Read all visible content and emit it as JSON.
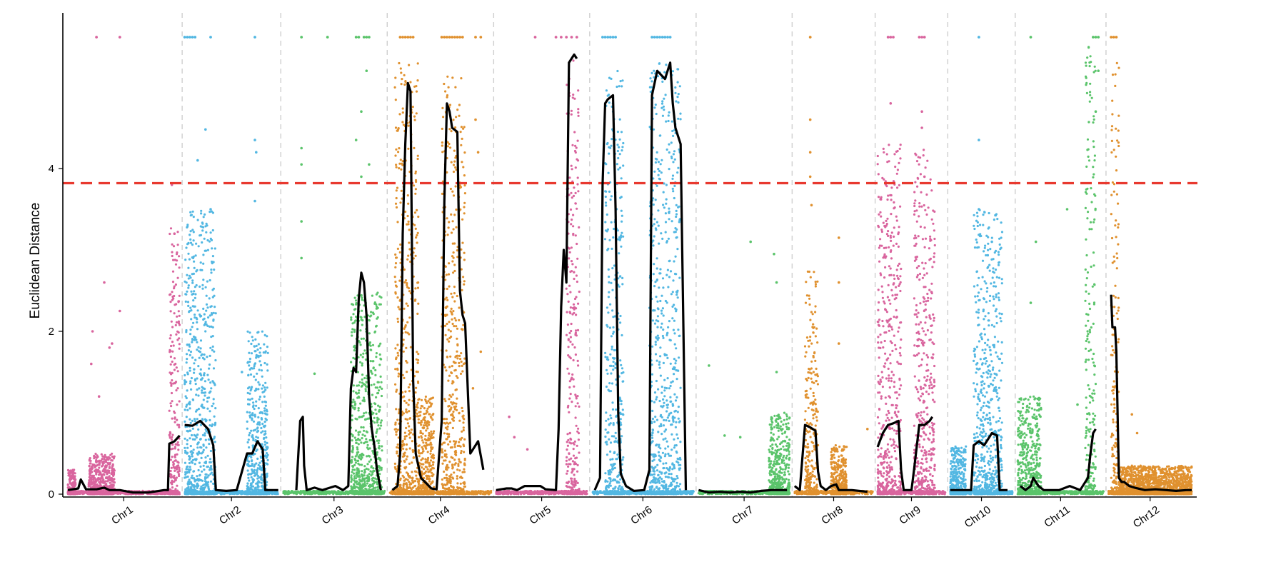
{
  "chart_data": {
    "type": "scatter",
    "title": "",
    "xlabel": "",
    "ylabel": "Euclidean Distance",
    "ylim": [
      -0.25,
      5.95
    ],
    "yticks": [
      0,
      2,
      4
    ],
    "threshold": 3.82,
    "threshold_color": "#e8392f",
    "grid": false,
    "chromosomes": [
      {
        "name": "Chr1",
        "color": "#d9659e",
        "length": 43,
        "dense": [
          [
            0,
            3,
            0.3
          ],
          [
            8,
            18,
            0.5
          ],
          [
            39,
            43,
            3.3
          ]
        ],
        "line": [
          [
            0,
            0.05
          ],
          [
            4,
            0.07
          ],
          [
            5,
            0.18
          ],
          [
            7,
            0.06
          ],
          [
            11,
            0.06
          ],
          [
            14,
            0.08
          ],
          [
            16,
            0.05
          ],
          [
            20,
            0.05
          ],
          [
            25,
            0.02
          ],
          [
            31,
            0.02
          ],
          [
            37,
            0.05
          ],
          [
            38.5,
            0.05
          ],
          [
            39,
            0.62
          ],
          [
            41,
            0.65
          ],
          [
            43,
            0.72
          ]
        ],
        "top": [
          11,
          20
        ],
        "sparse": [
          [
            9,
            1.6
          ],
          [
            9.5,
            2.0
          ],
          [
            14,
            2.6
          ],
          [
            16,
            1.8
          ],
          [
            17,
            1.85
          ],
          [
            20,
            2.25
          ],
          [
            12,
            1.2
          ],
          [
            41,
            3.2
          ],
          [
            40,
            3.8
          ]
        ]
      },
      {
        "name": "Chr2",
        "color": "#52b7e2",
        "length": 36,
        "dense": [
          [
            0,
            12,
            3.5
          ],
          [
            24,
            32,
            2.0
          ]
        ],
        "line": [
          [
            0,
            0.85
          ],
          [
            3,
            0.84
          ],
          [
            6,
            0.9
          ],
          [
            9,
            0.8
          ],
          [
            11,
            0.6
          ],
          [
            12,
            0.05
          ],
          [
            16,
            0.04
          ],
          [
            20,
            0.05
          ],
          [
            24,
            0.5
          ],
          [
            26,
            0.5
          ],
          [
            28,
            0.65
          ],
          [
            30,
            0.55
          ],
          [
            31,
            0.05
          ],
          [
            34,
            0.05
          ],
          [
            36,
            0.05
          ]
        ],
        "top": [
          0,
          1,
          2,
          3,
          4,
          10,
          27
        ],
        "sparse": [
          [
            5,
            4.1
          ],
          [
            8,
            4.48
          ],
          [
            10,
            3.5
          ],
          [
            27,
            4.35
          ],
          [
            27.5,
            4.2
          ],
          [
            27,
            3.6
          ],
          [
            22,
            1.5
          ]
        ]
      },
      {
        "name": "Chr3",
        "color": "#5bc46b",
        "length": 39,
        "dense": [
          [
            26,
            38,
            2.5
          ]
        ],
        "line": [
          [
            5,
            0.05
          ],
          [
            6.5,
            0.9
          ],
          [
            7.5,
            0.95
          ],
          [
            8,
            0.35
          ],
          [
            9,
            0.05
          ],
          [
            12,
            0.08
          ],
          [
            15,
            0.05
          ],
          [
            17,
            0.07
          ],
          [
            20,
            0.1
          ],
          [
            23,
            0.05
          ],
          [
            25,
            0.1
          ],
          [
            26,
            1.3
          ],
          [
            27,
            1.55
          ],
          [
            28,
            1.5
          ],
          [
            29,
            2.4
          ],
          [
            30,
            2.72
          ],
          [
            31,
            2.6
          ],
          [
            32,
            2.2
          ],
          [
            33,
            1.2
          ],
          [
            34,
            0.8
          ],
          [
            35,
            0.6
          ],
          [
            36,
            0.3
          ],
          [
            37.5,
            0.05
          ]
        ],
        "top": [
          7,
          17,
          28,
          29,
          31,
          32,
          33
        ],
        "sparse": [
          [
            7,
            4.25
          ],
          [
            7,
            4.05
          ],
          [
            7,
            3.35
          ],
          [
            7,
            2.9
          ],
          [
            12,
            1.48
          ],
          [
            28,
            4.35
          ],
          [
            30,
            4.7
          ],
          [
            32,
            5.2
          ],
          [
            33,
            4.05
          ],
          [
            30,
            3.9
          ]
        ]
      },
      {
        "name": "Chr4",
        "color": "#e0912f",
        "length": 39,
        "dense": [
          [
            2,
            11,
            5.3
          ],
          [
            11,
            17,
            1.2
          ],
          [
            20,
            29,
            5.2
          ]
        ],
        "line": [
          [
            1,
            0.05
          ],
          [
            3,
            0.1
          ],
          [
            4,
            0.5
          ],
          [
            5,
            3.2
          ],
          [
            6,
            4.3
          ],
          [
            7,
            5.05
          ],
          [
            8,
            4.95
          ],
          [
            9,
            1.4
          ],
          [
            10,
            0.5
          ],
          [
            12,
            0.2
          ],
          [
            16,
            0.07
          ],
          [
            18,
            0.06
          ],
          [
            20,
            0.9
          ],
          [
            21,
            3.6
          ],
          [
            22,
            4.8
          ],
          [
            23,
            4.7
          ],
          [
            24,
            4.5
          ],
          [
            26,
            4.45
          ],
          [
            27,
            2.5
          ],
          [
            28,
            2.2
          ],
          [
            29,
            2.1
          ],
          [
            31,
            0.5
          ],
          [
            32,
            0.55
          ],
          [
            34,
            0.65
          ],
          [
            36,
            0.3
          ]
        ],
        "top": [
          4,
          5,
          6,
          7,
          8,
          9,
          20,
          21,
          22,
          23,
          24,
          25,
          26,
          27,
          28,
          33,
          35
        ],
        "sparse": [
          [
            33,
            4.6
          ],
          [
            34,
            4.2
          ],
          [
            35,
            1.75
          ],
          [
            32,
            1.3
          ]
        ]
      },
      {
        "name": "Chr5",
        "color": "#d9659e",
        "length": 35,
        "dense": [
          [
            27,
            32,
            5.4
          ]
        ],
        "line": [
          [
            0,
            0.05
          ],
          [
            4,
            0.07
          ],
          [
            6,
            0.07
          ],
          [
            8,
            0.05
          ],
          [
            11,
            0.1
          ],
          [
            14,
            0.1
          ],
          [
            17,
            0.1
          ],
          [
            19,
            0.06
          ],
          [
            23,
            0.05
          ],
          [
            24,
            0.8
          ],
          [
            25,
            2.3
          ],
          [
            26,
            3.0
          ],
          [
            27,
            2.6
          ],
          [
            28,
            5.3
          ],
          [
            30,
            5.4
          ],
          [
            31,
            5.35
          ]
        ],
        "top": [
          15,
          23,
          25,
          27,
          29,
          31
        ],
        "sparse": [
          [
            5,
            0.95
          ],
          [
            7,
            0.7
          ],
          [
            12,
            0.55
          ]
        ]
      },
      {
        "name": "Chr6",
        "color": "#52b7e2",
        "length": 39,
        "dense": [
          [
            5,
            12,
            5.2
          ],
          [
            22,
            34,
            5.3
          ]
        ],
        "line": [
          [
            1,
            0.05
          ],
          [
            3,
            0.2
          ],
          [
            4,
            3.8
          ],
          [
            5,
            4.8
          ],
          [
            6,
            4.85
          ],
          [
            8,
            4.9
          ],
          [
            9,
            3.5
          ],
          [
            10,
            1.0
          ],
          [
            11,
            0.25
          ],
          [
            13,
            0.1
          ],
          [
            16,
            0.04
          ],
          [
            20,
            0.05
          ],
          [
            22,
            0.3
          ],
          [
            23,
            4.9
          ],
          [
            25,
            5.2
          ],
          [
            28,
            5.1
          ],
          [
            30,
            5.3
          ],
          [
            31,
            4.8
          ],
          [
            32,
            4.5
          ],
          [
            33,
            4.4
          ],
          [
            34,
            4.3
          ],
          [
            36,
            0.05
          ]
        ],
        "top": [
          4,
          5,
          6,
          7,
          8,
          9,
          23,
          24,
          25,
          26,
          27,
          28,
          29,
          30
        ],
        "sparse": []
      },
      {
        "name": "Chr7",
        "color": "#5bc46b",
        "length": 35,
        "dense": [
          [
            27,
            35,
            1.0
          ]
        ],
        "line": [
          [
            0,
            0.05
          ],
          [
            4,
            0.02
          ],
          [
            8,
            0.03
          ],
          [
            12,
            0.02
          ],
          [
            16,
            0.03
          ],
          [
            20,
            0.02
          ],
          [
            24,
            0.04
          ],
          [
            28,
            0.05
          ],
          [
            34,
            0.05
          ]
        ],
        "top": [],
        "sparse": [
          [
            4,
            1.58
          ],
          [
            20,
            3.1
          ],
          [
            29,
            2.95
          ],
          [
            30,
            2.6
          ],
          [
            30,
            1.5
          ],
          [
            10,
            0.72
          ],
          [
            16,
            0.7
          ]
        ]
      },
      {
        "name": "Chr8",
        "color": "#e0912f",
        "length": 30,
        "dense": [
          [
            4,
            9,
            2.8
          ],
          [
            14,
            20,
            0.6
          ]
        ],
        "line": [
          [
            0,
            0.1
          ],
          [
            2,
            0.05
          ],
          [
            4,
            0.85
          ],
          [
            6,
            0.82
          ],
          [
            8,
            0.78
          ],
          [
            9,
            0.28
          ],
          [
            10,
            0.1
          ],
          [
            12,
            0.05
          ],
          [
            14,
            0.1
          ],
          [
            16,
            0.12
          ],
          [
            17,
            0.05
          ],
          [
            22,
            0.05
          ],
          [
            28,
            0.03
          ]
        ],
        "top": [
          6
        ],
        "sparse": [
          [
            6,
            4.6
          ],
          [
            6,
            4.2
          ],
          [
            6,
            3.9
          ],
          [
            6.5,
            3.55
          ],
          [
            17,
            3.15
          ],
          [
            17,
            2.6
          ],
          [
            17,
            1.85
          ],
          [
            28,
            0.8
          ]
        ]
      },
      {
        "name": "Chr9",
        "color": "#d9659e",
        "length": 26,
        "dense": [
          [
            0,
            9,
            4.3
          ],
          [
            14,
            22,
            4.3
          ]
        ],
        "line": [
          [
            0,
            0.58
          ],
          [
            2,
            0.75
          ],
          [
            4,
            0.85
          ],
          [
            6,
            0.87
          ],
          [
            8,
            0.9
          ],
          [
            9,
            0.3
          ],
          [
            10,
            0.05
          ],
          [
            13,
            0.05
          ],
          [
            14,
            0.3
          ],
          [
            16,
            0.85
          ],
          [
            18,
            0.85
          ],
          [
            20,
            0.9
          ],
          [
            21,
            0.95
          ]
        ],
        "top": [
          4,
          5,
          6,
          16,
          17,
          18
        ],
        "sparse": [
          [
            5,
            4.8
          ],
          [
            17,
            4.7
          ],
          [
            17,
            4.5
          ],
          [
            18,
            3.9
          ]
        ]
      },
      {
        "name": "Chr10",
        "color": "#52b7e2",
        "length": 24,
        "dense": [
          [
            0,
            6,
            0.6
          ],
          [
            9,
            20,
            3.5
          ]
        ],
        "line": [
          [
            0,
            0.05
          ],
          [
            5,
            0.05
          ],
          [
            8,
            0.05
          ],
          [
            9,
            0.6
          ],
          [
            11,
            0.65
          ],
          [
            13,
            0.6
          ],
          [
            15,
            0.7
          ],
          [
            16,
            0.75
          ],
          [
            18,
            0.72
          ],
          [
            19,
            0.05
          ],
          [
            22,
            0.05
          ]
        ],
        "top": [
          11
        ],
        "sparse": [
          [
            11,
            4.35
          ],
          [
            11,
            3.5
          ],
          [
            16,
            3.1
          ]
        ]
      },
      {
        "name": "Chr11",
        "color": "#5bc46b",
        "length": 33,
        "dense": [
          [
            0,
            9,
            1.2
          ],
          [
            26,
            30,
            5.5
          ]
        ],
        "line": [
          [
            1,
            0.1
          ],
          [
            3,
            0.05
          ],
          [
            5,
            0.1
          ],
          [
            6,
            0.2
          ],
          [
            8,
            0.1
          ],
          [
            10,
            0.05
          ],
          [
            16,
            0.05
          ],
          [
            20,
            0.1
          ],
          [
            24,
            0.05
          ],
          [
            27,
            0.2
          ],
          [
            28,
            0.5
          ],
          [
            29,
            0.75
          ],
          [
            30,
            0.8
          ]
        ],
        "top": [
          5,
          29,
          30,
          31
        ],
        "sparse": [
          [
            5,
            2.35
          ],
          [
            7,
            3.1
          ],
          [
            19,
            3.5
          ],
          [
            23,
            1.1
          ],
          [
            30,
            4.7
          ],
          [
            31,
            5.2
          ]
        ]
      },
      {
        "name": "Chr12",
        "color": "#e0912f",
        "length": 32,
        "dense": [
          [
            1,
            4,
            5.3
          ],
          [
            4,
            32,
            0.35
          ]
        ],
        "line": [
          [
            1,
            2.45
          ],
          [
            1.5,
            2.05
          ],
          [
            2.5,
            2.05
          ],
          [
            3,
            1.75
          ],
          [
            4,
            0.2
          ],
          [
            5,
            0.15
          ],
          [
            6,
            0.15
          ],
          [
            8,
            0.1
          ],
          [
            10,
            0.08
          ],
          [
            14,
            0.05
          ],
          [
            18,
            0.06
          ],
          [
            22,
            0.05
          ],
          [
            26,
            0.04
          ],
          [
            30,
            0.05
          ],
          [
            32,
            0.05
          ]
        ],
        "top": [
          1,
          2,
          3
        ],
        "sparse": [
          [
            9,
            0.98
          ],
          [
            11,
            0.75
          ]
        ]
      }
    ]
  }
}
